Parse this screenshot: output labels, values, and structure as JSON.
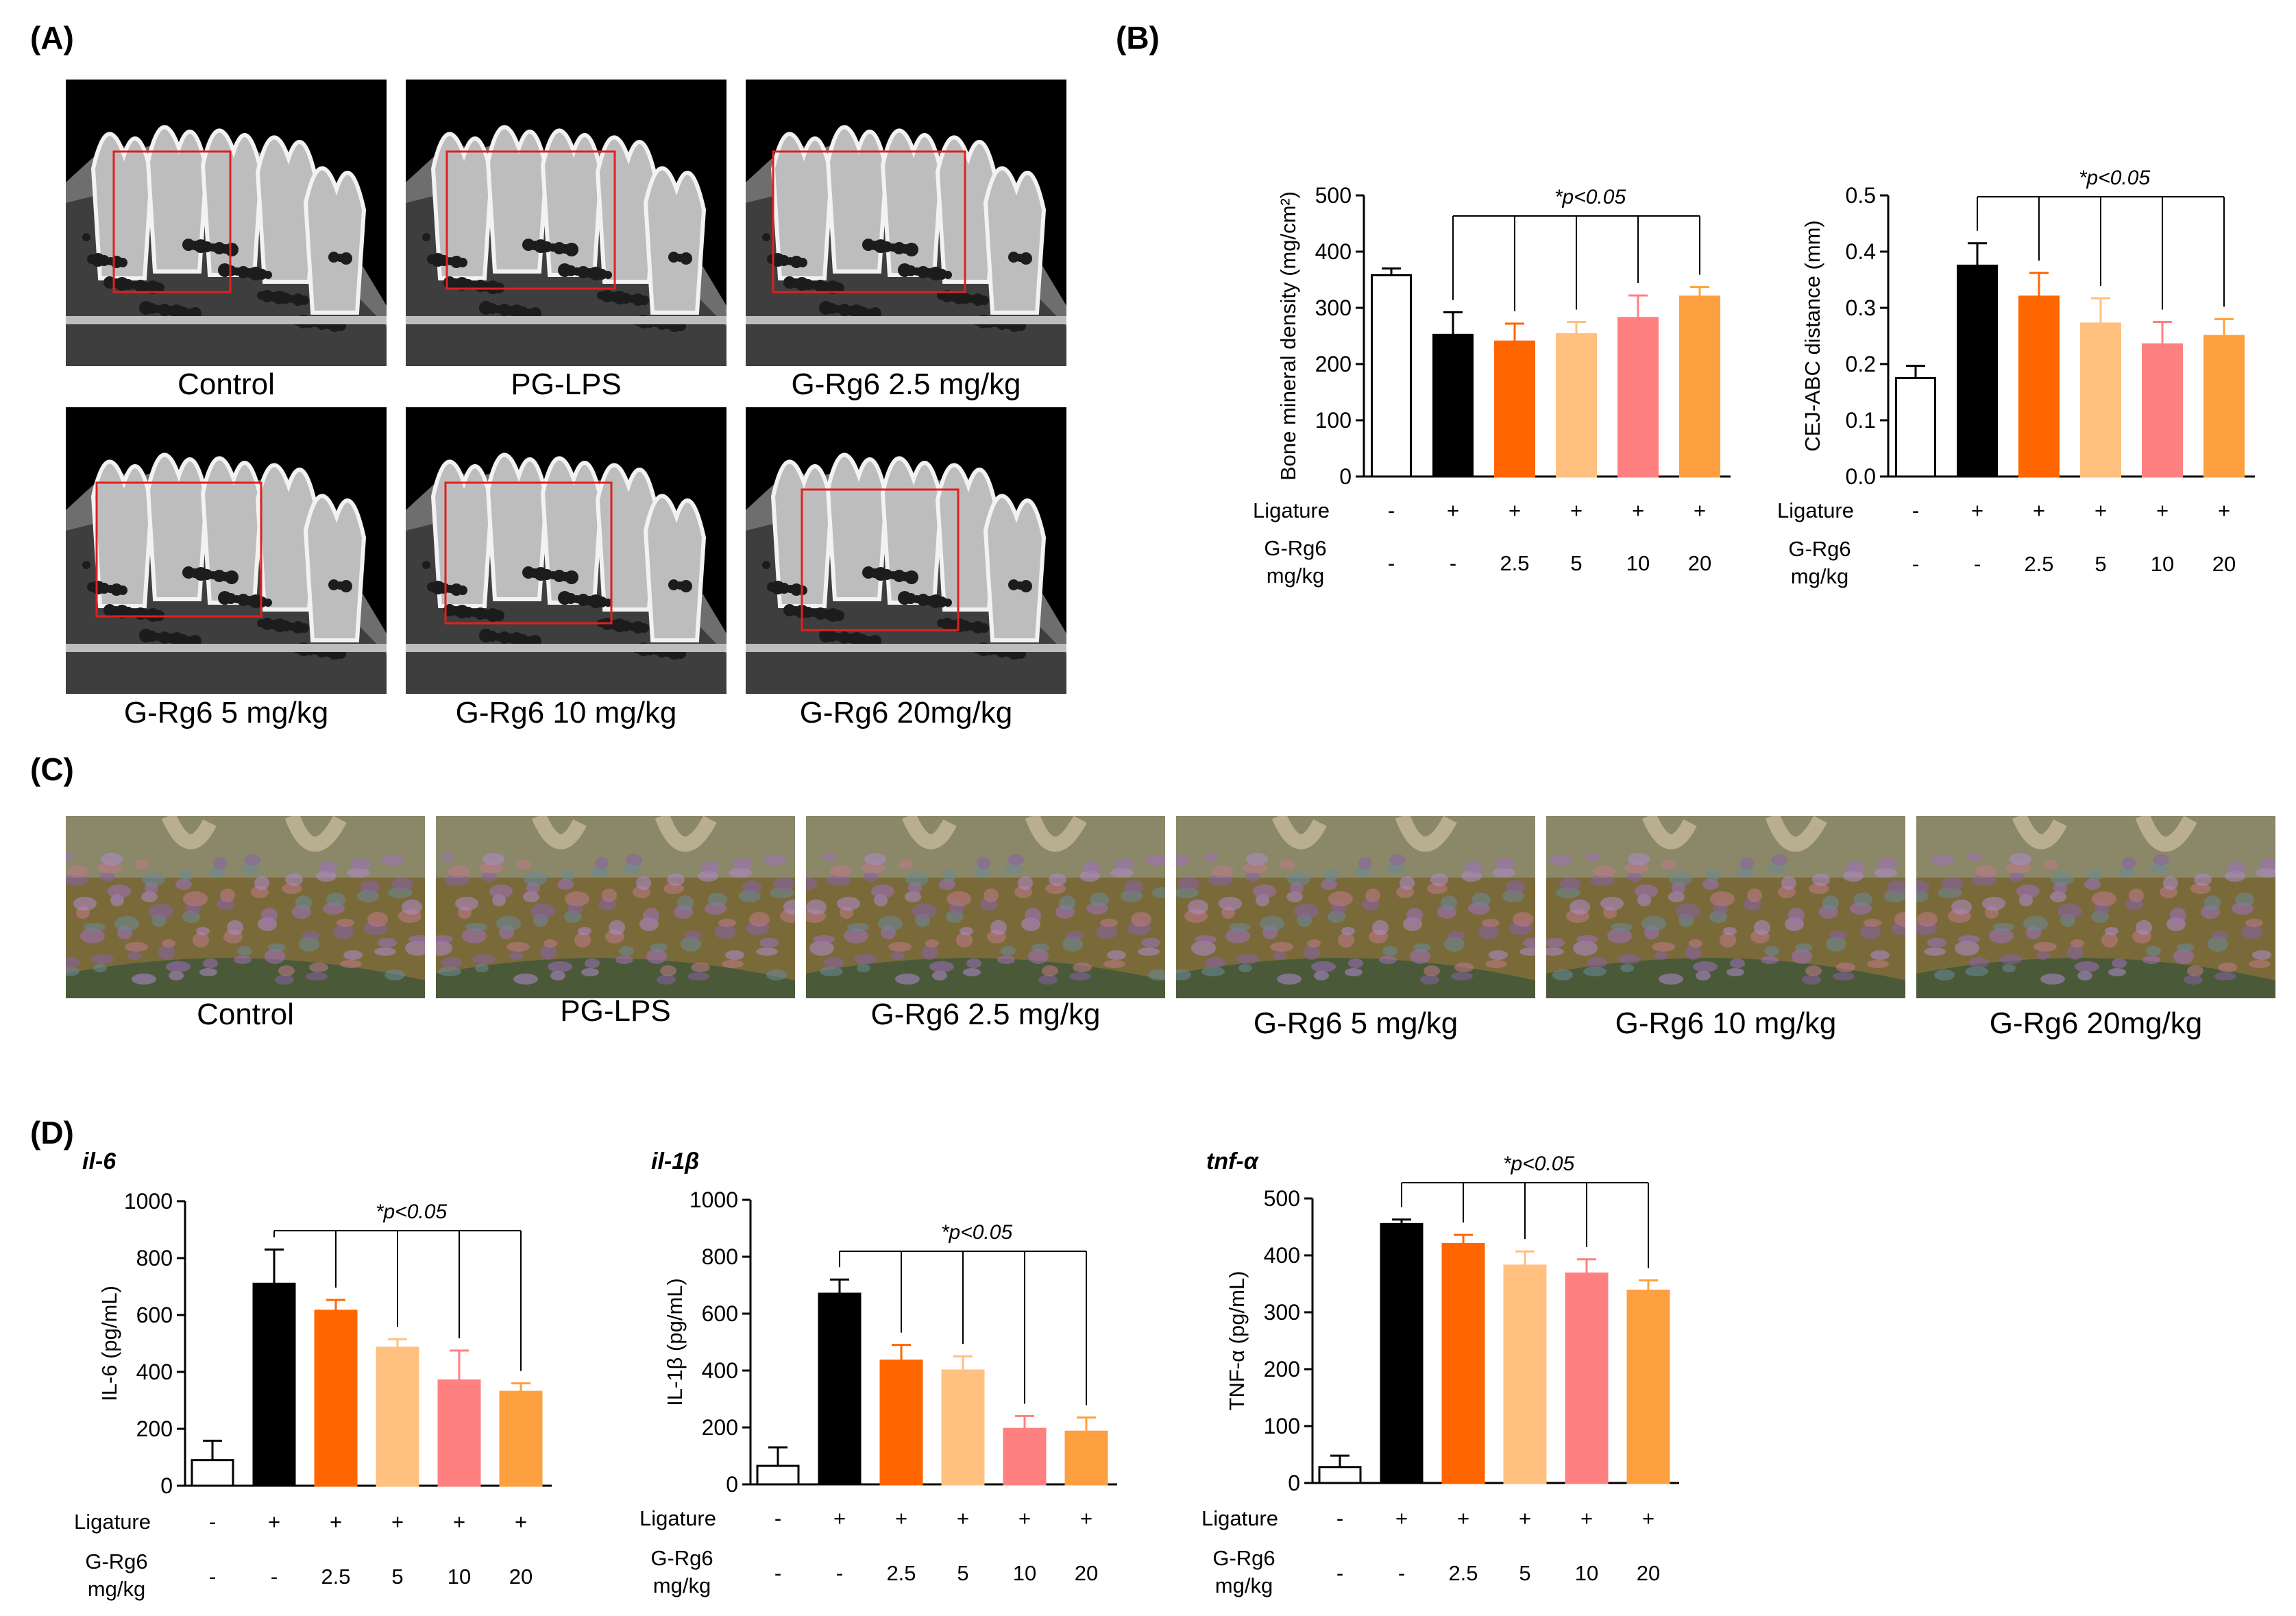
{
  "panels": {
    "A": {
      "label": "(A)",
      "captions": [
        "Control",
        "PG-LPS",
        "G-Rg6 2.5 mg/kg",
        "G-Rg6 5 mg/kg",
        "G-Rg6 10 mg/kg",
        "G-Rg6 20mg/kg"
      ]
    },
    "B": {
      "label": "(B)"
    },
    "C": {
      "label": "(C)",
      "captions": [
        "Control",
        "PG-LPS",
        "G-Rg6 2.5 mg/kg",
        "G-Rg6 5 mg/kg",
        "G-Rg6 10 mg/kg",
        "G-Rg6 20mg/kg"
      ]
    },
    "D": {
      "label": "(D)"
    }
  },
  "bar_colors": [
    "#ffffff",
    "#000000",
    "#ff6600",
    "#ffc080",
    "#ff8080",
    "#ffa040"
  ],
  "chart_data": [
    {
      "id": "bmd",
      "type": "bar",
      "panel": "B",
      "title": "",
      "ylabel": "Bone mineral density (mg/cm²)",
      "ylim": [
        0,
        500
      ],
      "yticks": [
        0,
        100,
        200,
        300,
        400,
        500
      ],
      "values": [
        358,
        252,
        240,
        253,
        282,
        320
      ],
      "errors": [
        12,
        40,
        32,
        22,
        40,
        17
      ],
      "significance": "*p<0.05",
      "ligature_label": "Ligature",
      "ligature": [
        "-",
        "+",
        "+",
        "+",
        "+",
        "+"
      ],
      "dose_label_1": "G-Rg6",
      "dose_label_2": "mg/kg",
      "dose": [
        "-",
        "-",
        "2.5",
        "5",
        "10",
        "20"
      ]
    },
    {
      "id": "cej",
      "type": "bar",
      "panel": "B",
      "title": "",
      "ylabel": "CEJ-ABC distance (mm)",
      "ylim": [
        0,
        0.5
      ],
      "yticks": [
        "0.0",
        "0.1",
        "0.2",
        "0.3",
        "0.4",
        "0.5"
      ],
      "values": [
        0.175,
        0.375,
        0.32,
        0.272,
        0.235,
        0.25
      ],
      "errors": [
        0.022,
        0.04,
        0.042,
        0.045,
        0.04,
        0.03
      ],
      "significance": "*p<0.05",
      "ligature_label": "Ligature",
      "ligature": [
        "-",
        "+",
        "+",
        "+",
        "+",
        "+"
      ],
      "dose_label_1": "G-Rg6",
      "dose_label_2": "mg/kg",
      "dose": [
        "-",
        "-",
        "2.5",
        "5",
        "10",
        "20"
      ]
    },
    {
      "id": "il6",
      "type": "bar",
      "panel": "D",
      "title": "il-6",
      "ylabel": "IL-6 (pg/mL)",
      "ylim": [
        0,
        1000
      ],
      "yticks": [
        0,
        200,
        400,
        600,
        800,
        1000
      ],
      "values": [
        90,
        710,
        615,
        485,
        370,
        330
      ],
      "errors": [
        68,
        120,
        38,
        30,
        105,
        30
      ],
      "significance": "*p<0.05",
      "ligature_label": "Ligature",
      "ligature": [
        "-",
        "+",
        "+",
        "+",
        "+",
        "+"
      ],
      "dose_label_1": "G-Rg6",
      "dose_label_2": "mg/kg",
      "dose": [
        "-",
        "-",
        "2.5",
        "5",
        "10",
        "20"
      ]
    },
    {
      "id": "il1b",
      "type": "bar",
      "panel": "D",
      "title": "il-1β",
      "ylabel": "IL-1β (pg/mL)",
      "ylim": [
        0,
        1000
      ],
      "yticks": [
        0,
        200,
        400,
        600,
        800,
        1000
      ],
      "values": [
        65,
        670,
        435,
        400,
        195,
        185
      ],
      "errors": [
        65,
        50,
        55,
        50,
        45,
        50
      ],
      "significance": "*p<0.05",
      "ligature_label": "Ligature",
      "ligature": [
        "-",
        "+",
        "+",
        "+",
        "+",
        "+"
      ],
      "dose_label_1": "G-Rg6",
      "dose_label_2": "mg/kg",
      "dose": [
        "-",
        "-",
        "2.5",
        "5",
        "10",
        "20"
      ]
    },
    {
      "id": "tnfa",
      "type": "bar",
      "panel": "D",
      "title": "tnf-α",
      "ylabel": "TNF-α (pg/mL)",
      "ylim": [
        0,
        500
      ],
      "yticks": [
        0,
        100,
        200,
        300,
        400,
        500
      ],
      "values": [
        28,
        455,
        420,
        382,
        368,
        338
      ],
      "errors": [
        20,
        8,
        16,
        25,
        25,
        18
      ],
      "significance": "*p<0.05",
      "ligature_label": "Ligature",
      "ligature": [
        "-",
        "+",
        "+",
        "+",
        "+",
        "+"
      ],
      "dose_label_1": "G-Rg6",
      "dose_label_2": "mg/kg",
      "dose": [
        "-",
        "-",
        "2.5",
        "5",
        "10",
        "20"
      ]
    }
  ]
}
